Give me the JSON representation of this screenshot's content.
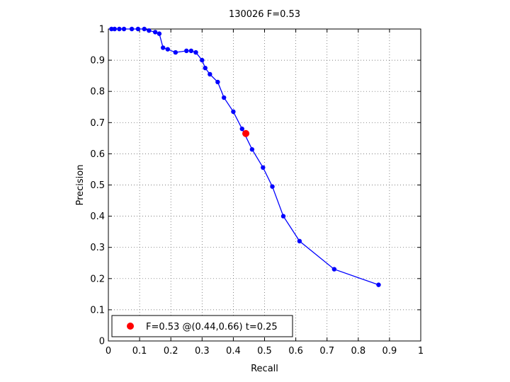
{
  "chart_data": {
    "type": "line",
    "title": "130026 F=0.53",
    "xlabel": "Recall",
    "ylabel": "Precision",
    "xlim": [
      0,
      1
    ],
    "ylim": [
      0,
      1
    ],
    "xticks": [
      "0",
      "0.1",
      "0.2",
      "0.3",
      "0.4",
      "0.5",
      "0.6",
      "0.7",
      "0.8",
      "0.9",
      "1"
    ],
    "yticks": [
      "0",
      "0.1",
      "0.2",
      "0.3",
      "0.4",
      "0.5",
      "0.6",
      "0.7",
      "0.8",
      "0.9",
      "1"
    ],
    "grid": true,
    "legend_position": "bottom-left",
    "series": [
      {
        "color": "#0000ff",
        "x": [
          0.01,
          0.02,
          0.035,
          0.05,
          0.075,
          0.095,
          0.115,
          0.13,
          0.15,
          0.163,
          0.175,
          0.19,
          0.215,
          0.25,
          0.265,
          0.28,
          0.3,
          0.31,
          0.325,
          0.35,
          0.37,
          0.4,
          0.428,
          0.46,
          0.495,
          0.525,
          0.56,
          0.612,
          0.723,
          0.865
        ],
        "y": [
          1.0,
          1.0,
          1.0,
          1.0,
          1.0,
          1.0,
          1.0,
          0.995,
          0.99,
          0.985,
          0.94,
          0.935,
          0.925,
          0.93,
          0.93,
          0.925,
          0.9,
          0.875,
          0.855,
          0.83,
          0.78,
          0.735,
          0.68,
          0.614,
          0.556,
          0.495,
          0.4,
          0.32,
          0.23,
          0.18
        ]
      }
    ],
    "best_point": {
      "x": 0.44,
      "y": 0.665,
      "color": "#ff0000"
    },
    "legend_label": "F=0.53 @(0.44,0.66) t=0.25"
  }
}
